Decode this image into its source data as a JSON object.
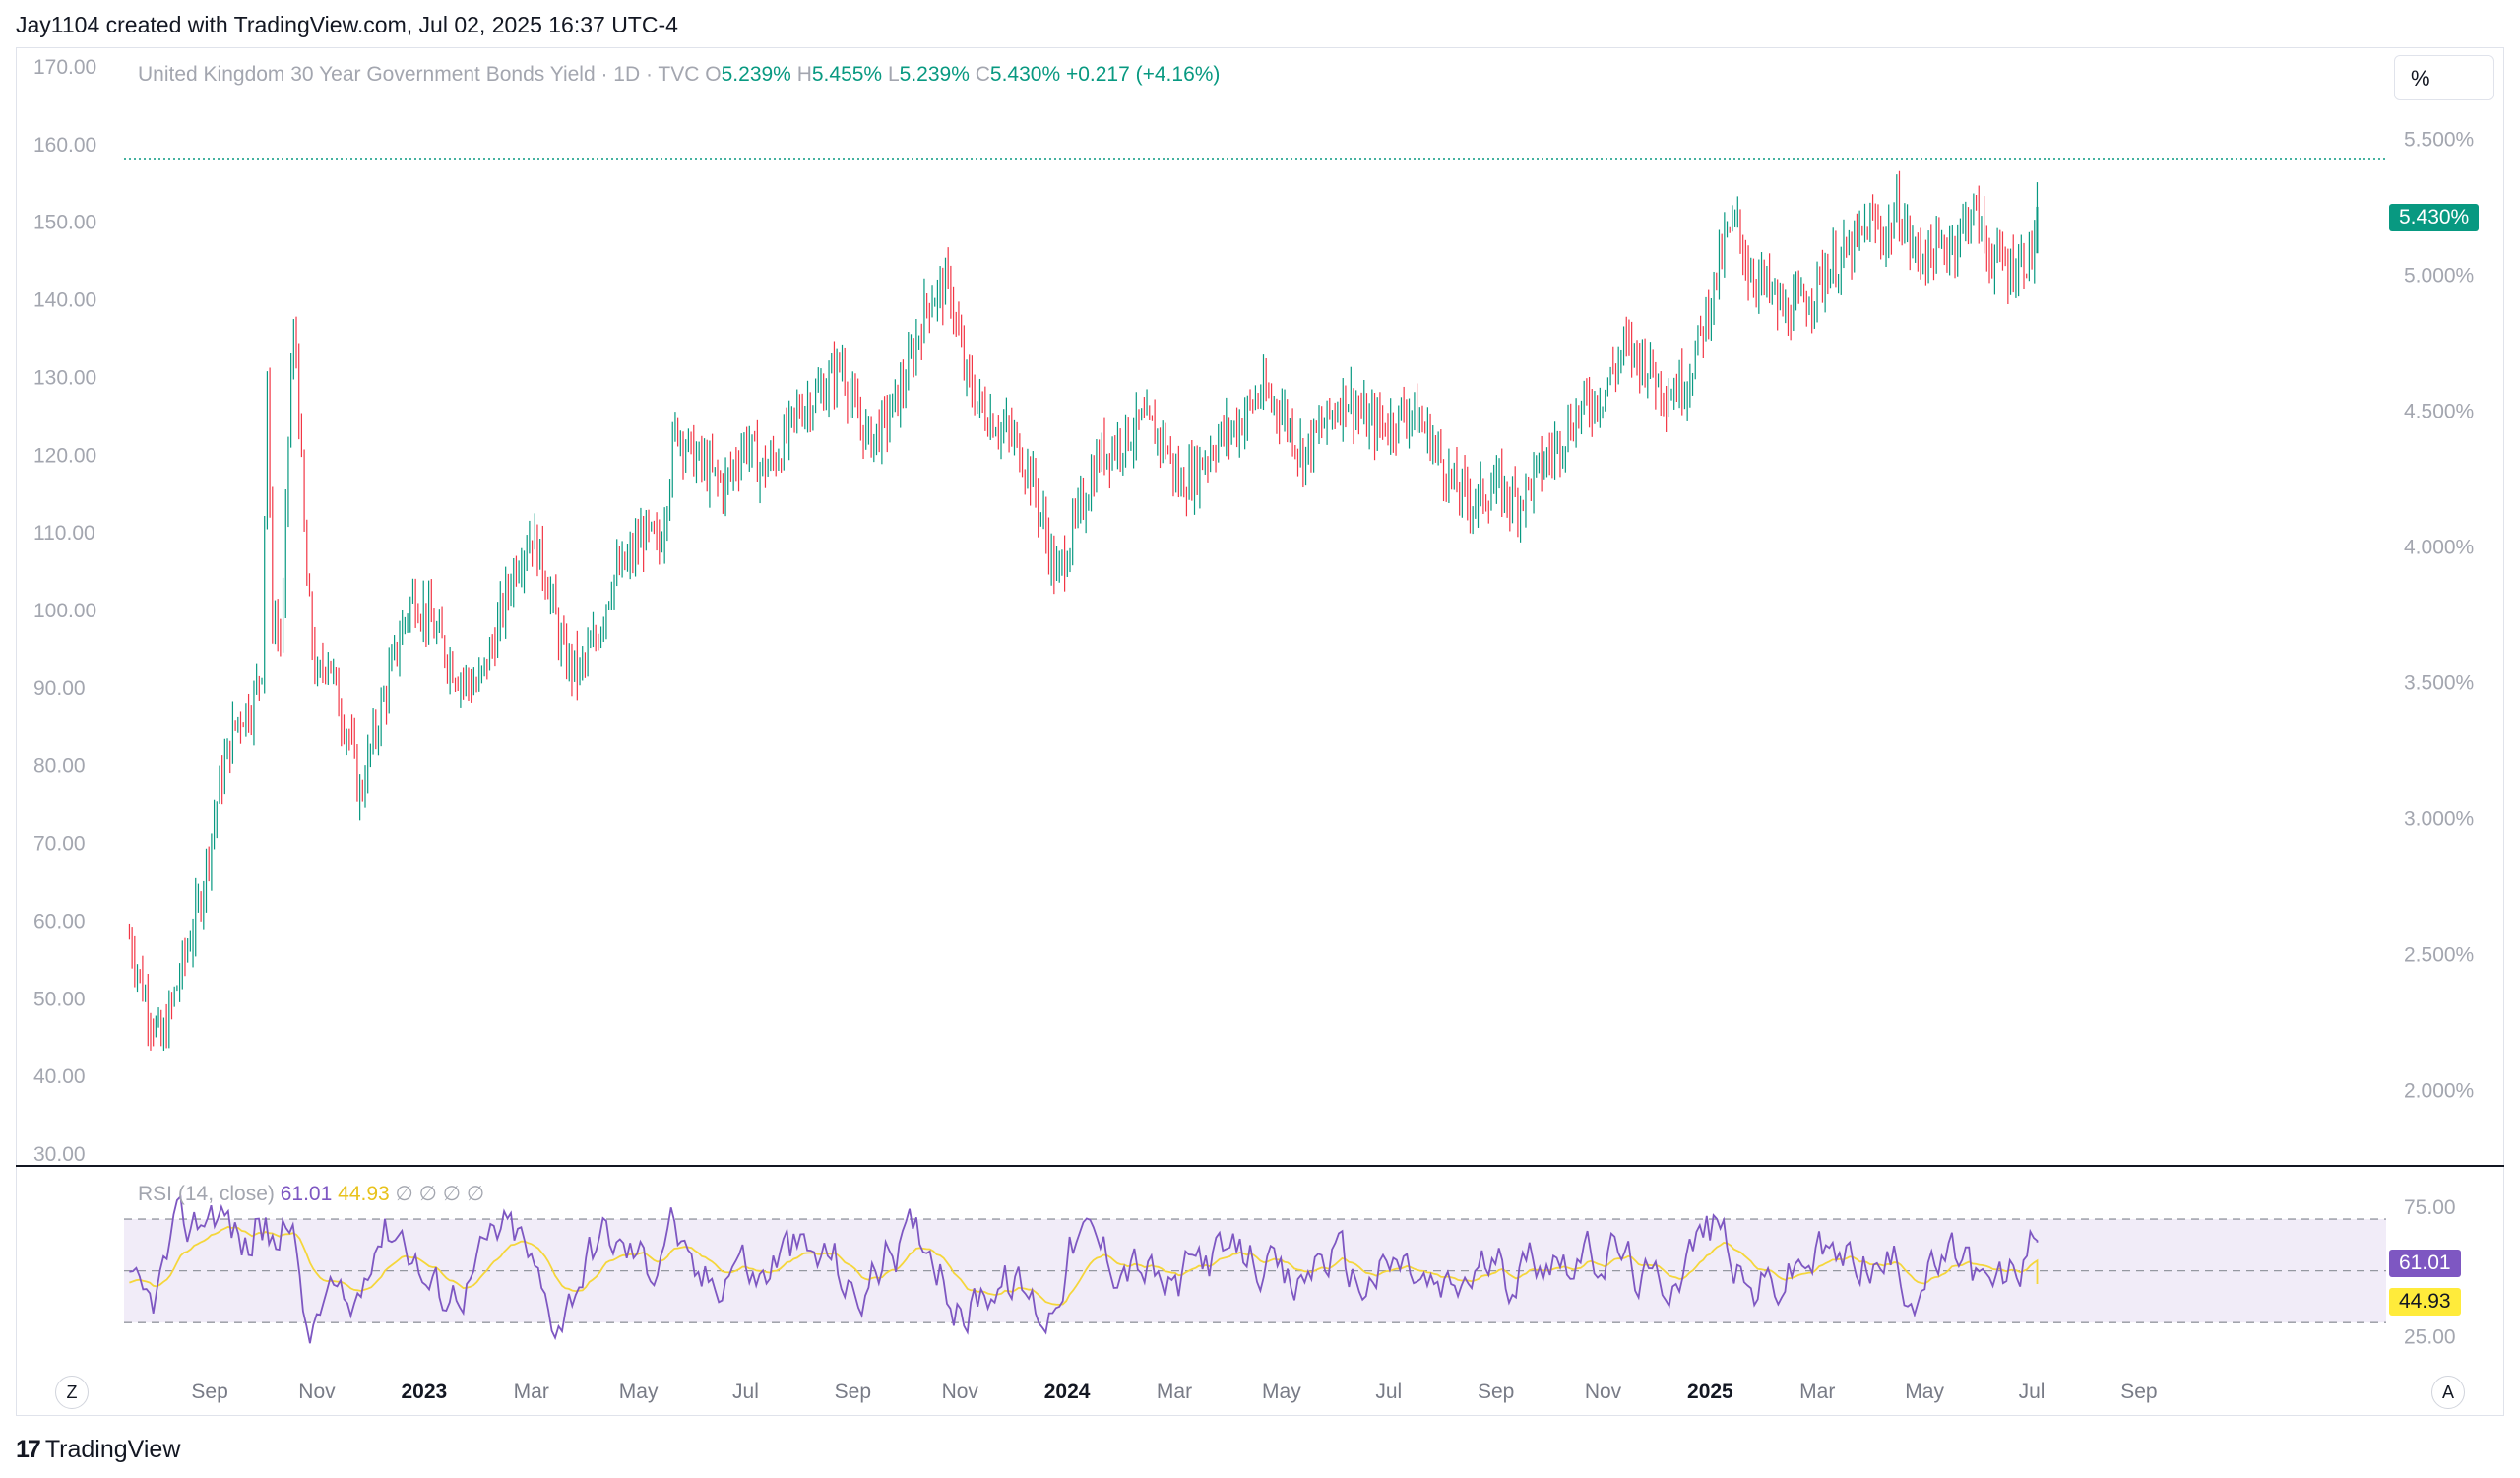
{
  "header": {
    "text": "Jay1104 created with TradingView.com, Jul 02, 2025 16:37 UTC-4"
  },
  "legend": {
    "symbol": "United Kingdom 30 Year Government Bonds Yield · 1D · TVC",
    "open_label": "O",
    "open": "5.239%",
    "high_label": "H",
    "high": "5.455%",
    "low_label": "L",
    "low": "5.239%",
    "close_label": "C",
    "close": "5.430%",
    "change": "+0.217 (+4.16%)"
  },
  "rsi_legend": {
    "label": "RSI (14, close)",
    "rsi_value": "61.01",
    "ma_value": "44.93",
    "empty_marks": "∅ ∅ ∅ ∅"
  },
  "percent_button": "%",
  "price_tag": "5.430%",
  "rsi_tag": "61.01",
  "ma_tag": "44.93",
  "axis_a_color": "#131722",
  "footer": {
    "logo_mark": "17",
    "logo_text": "TradingView"
  },
  "buttons": {
    "z": "Z",
    "a": "A"
  },
  "colors": {
    "up": "#089981",
    "down": "#f23645",
    "rsi": "#7e57c2",
    "rsi_ma": "#f5d63b",
    "band": "#ede7f6"
  },
  "chart_data": {
    "type": "candlestick",
    "title": "United Kingdom 30 Year Government Bonds Yield · 1D · TVC",
    "left_axis": {
      "ticks": [
        "170.00",
        "160.00",
        "150.00",
        "140.00",
        "130.00",
        "120.00",
        "110.00",
        "100.00",
        "90.00",
        "80.00",
        "70.00",
        "60.00",
        "50.00",
        "40.00",
        "30.00"
      ],
      "range": [
        30,
        170
      ]
    },
    "right_axis": {
      "ticks": [
        "5.500%",
        "5.000%",
        "4.500%",
        "4.000%",
        "3.500%",
        "3.000%",
        "2.500%",
        "2.000%"
      ],
      "range_percent": [
        1.767,
        5.767
      ]
    },
    "x_axis": {
      "labels": [
        {
          "text": "Sep",
          "bold": false,
          "t": 0.0
        },
        {
          "text": "Nov",
          "bold": false,
          "t": 2.0
        },
        {
          "text": "2023",
          "bold": true,
          "t": 4.0
        },
        {
          "text": "Mar",
          "bold": false,
          "t": 6.0
        },
        {
          "text": "May",
          "bold": false,
          "t": 8.0
        },
        {
          "text": "Jul",
          "bold": false,
          "t": 10.0
        },
        {
          "text": "Sep",
          "bold": false,
          "t": 12.0
        },
        {
          "text": "Nov",
          "bold": false,
          "t": 14.0
        },
        {
          "text": "2024",
          "bold": true,
          "t": 16.0
        },
        {
          "text": "Mar",
          "bold": false,
          "t": 18.0
        },
        {
          "text": "May",
          "bold": false,
          "t": 20.0
        },
        {
          "text": "Jul",
          "bold": false,
          "t": 22.0
        },
        {
          "text": "Sep",
          "bold": false,
          "t": 24.0
        },
        {
          "text": "Nov",
          "bold": false,
          "t": 26.0
        },
        {
          "text": "2025",
          "bold": true,
          "t": 28.0
        },
        {
          "text": "Mar",
          "bold": false,
          "t": 30.0
        },
        {
          "text": "May",
          "bold": false,
          "t": 32.0
        },
        {
          "text": "Jul",
          "bold": false,
          "t": 34.0
        },
        {
          "text": "Sep",
          "bold": false,
          "t": 36.0
        }
      ],
      "note": "t = months since Sep 1 2022 label"
    },
    "series_anchors_left_scale": [
      [
        -1.5,
        58
      ],
      [
        -1.2,
        50
      ],
      [
        -0.9,
        44
      ],
      [
        -0.6,
        52
      ],
      [
        -0.2,
        62
      ],
      [
        0.2,
        78
      ],
      [
        0.5,
        86
      ],
      [
        0.8,
        88
      ],
      [
        1.0,
        94
      ],
      [
        1.05,
        138
      ],
      [
        1.15,
        100
      ],
      [
        1.35,
        96
      ],
      [
        1.5,
        130
      ],
      [
        1.6,
        136
      ],
      [
        1.8,
        104
      ],
      [
        2.0,
        90
      ],
      [
        2.2,
        95
      ],
      [
        2.4,
        88
      ],
      [
        2.6,
        84
      ],
      [
        2.8,
        76
      ],
      [
        3.0,
        82
      ],
      [
        3.3,
        90
      ],
      [
        3.6,
        98
      ],
      [
        3.8,
        102
      ],
      [
        4.0,
        100
      ],
      [
        4.3,
        96
      ],
      [
        4.6,
        92
      ],
      [
        5.0,
        90
      ],
      [
        5.3,
        96
      ],
      [
        5.7,
        106
      ],
      [
        6.0,
        110
      ],
      [
        6.3,
        104
      ],
      [
        6.6,
        94
      ],
      [
        6.9,
        92
      ],
      [
        7.2,
        96
      ],
      [
        7.5,
        104
      ],
      [
        7.8,
        106
      ],
      [
        8.1,
        110
      ],
      [
        8.4,
        108
      ],
      [
        8.7,
        124
      ],
      [
        9.0,
        120
      ],
      [
        9.3,
        118
      ],
      [
        9.6,
        116
      ],
      [
        10.0,
        122
      ],
      [
        10.3,
        118
      ],
      [
        10.6,
        120
      ],
      [
        11.0,
        126
      ],
      [
        11.4,
        128
      ],
      [
        11.8,
        132
      ],
      [
        12.0,
        126
      ],
      [
        12.3,
        122
      ],
      [
        12.6,
        124
      ],
      [
        13.0,
        130
      ],
      [
        13.4,
        140
      ],
      [
        13.8,
        142
      ],
      [
        14.1,
        130
      ],
      [
        14.4,
        126
      ],
      [
        14.7,
        124
      ],
      [
        15.0,
        122
      ],
      [
        15.3,
        118
      ],
      [
        15.6,
        110
      ],
      [
        15.8,
        104
      ],
      [
        16.0,
        108
      ],
      [
        16.3,
        114
      ],
      [
        16.6,
        120
      ],
      [
        17.0,
        122
      ],
      [
        17.4,
        124
      ],
      [
        17.8,
        122
      ],
      [
        18.1,
        116
      ],
      [
        18.4,
        118
      ],
      [
        18.8,
        122
      ],
      [
        19.2,
        124
      ],
      [
        19.6,
        128
      ],
      [
        20.0,
        126
      ],
      [
        20.4,
        120
      ],
      [
        20.8,
        124
      ],
      [
        21.2,
        128
      ],
      [
        21.6,
        124
      ],
      [
        22.0,
        124
      ],
      [
        22.4,
        126
      ],
      [
        22.8,
        122
      ],
      [
        23.2,
        116
      ],
      [
        23.6,
        114
      ],
      [
        24.0,
        116
      ],
      [
        24.4,
        114
      ],
      [
        24.8,
        118
      ],
      [
        25.2,
        122
      ],
      [
        25.6,
        126
      ],
      [
        26.0,
        128
      ],
      [
        26.4,
        134
      ],
      [
        26.8,
        132
      ],
      [
        27.2,
        128
      ],
      [
        27.6,
        130
      ],
      [
        28.0,
        140
      ],
      [
        28.3,
        148
      ],
      [
        28.5,
        150
      ],
      [
        28.7,
        144
      ],
      [
        29.0,
        142
      ],
      [
        29.4,
        138
      ],
      [
        29.8,
        140
      ],
      [
        30.2,
        144
      ],
      [
        30.6,
        146
      ],
      [
        31.0,
        150
      ],
      [
        31.3,
        148
      ],
      [
        31.5,
        152
      ],
      [
        31.8,
        146
      ],
      [
        32.2,
        146
      ],
      [
        32.6,
        148
      ],
      [
        32.9,
        152
      ],
      [
        33.2,
        146
      ],
      [
        33.6,
        144
      ],
      [
        34.0,
        146
      ],
      [
        34.1,
        151
      ]
    ],
    "last": {
      "open": 5.239,
      "high": 5.455,
      "low": 5.239,
      "close": 5.43,
      "change": 0.217,
      "change_pct": 4.16
    },
    "rsi": {
      "name": "RSI (14, close)",
      "range": [
        16,
        86
      ],
      "ticks": [
        "75.00",
        "25.00"
      ],
      "band": [
        30,
        70
      ],
      "midline": 50,
      "last": 61.01,
      "ma_last": 44.93
    }
  }
}
